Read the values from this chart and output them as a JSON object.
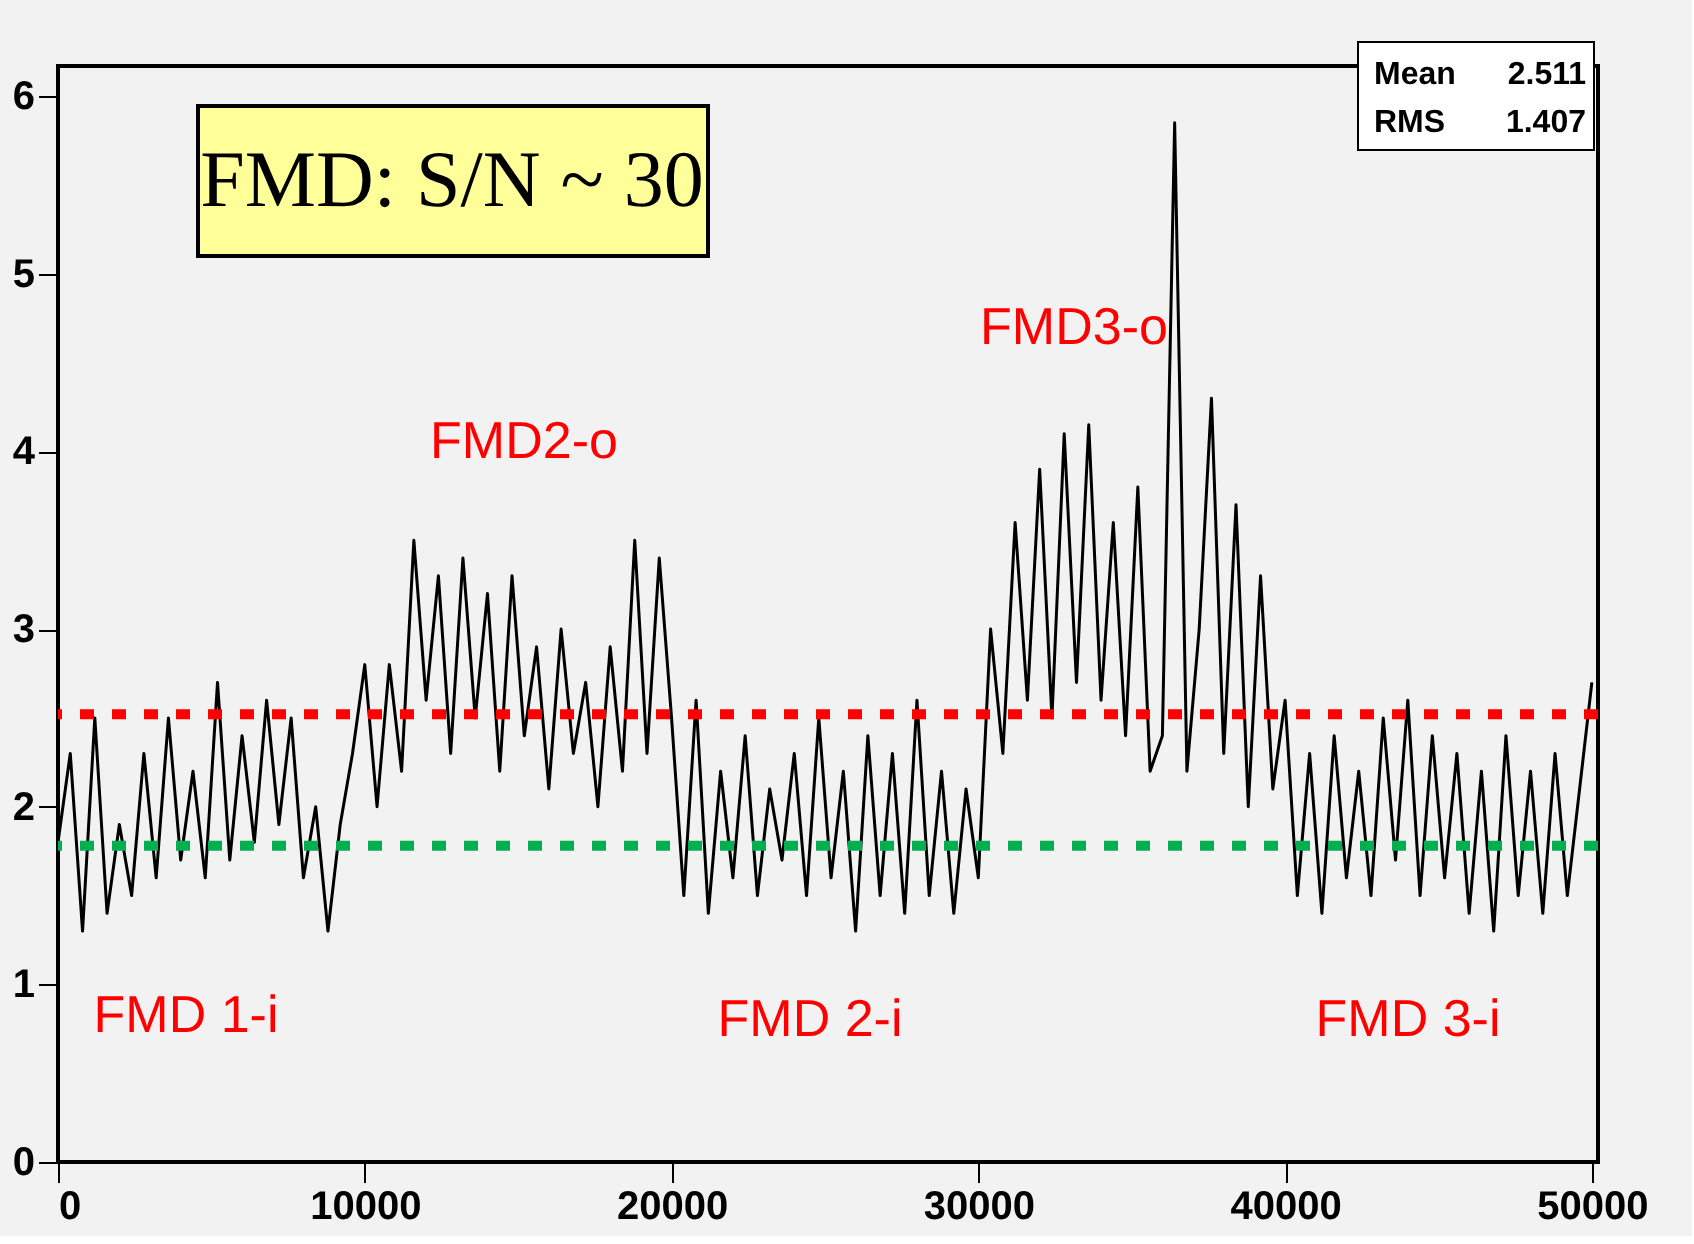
{
  "chart_data": {
    "type": "line",
    "x": [
      0,
      400,
      800,
      1200,
      1600,
      2000,
      2400,
      2800,
      3200,
      3600,
      4000,
      4400,
      4800,
      5200,
      5600,
      6000,
      6400,
      6800,
      7200,
      7600,
      8000,
      8400,
      8800,
      9200,
      9600,
      10000,
      10400,
      10800,
      11200,
      11600,
      12000,
      12400,
      12800,
      13200,
      13600,
      14000,
      14400,
      14800,
      15200,
      15600,
      16000,
      16400,
      16800,
      17200,
      17600,
      18000,
      18400,
      18800,
      19200,
      19600,
      20000,
      20400,
      20800,
      21200,
      21600,
      22000,
      22400,
      22800,
      23200,
      23600,
      24000,
      24400,
      24800,
      25200,
      25600,
      26000,
      26400,
      26800,
      27200,
      27600,
      28000,
      28400,
      28800,
      29200,
      29600,
      30000,
      30400,
      30800,
      31200,
      31600,
      32000,
      32400,
      32800,
      33200,
      33600,
      34000,
      34400,
      34800,
      35200,
      35600,
      36000,
      36400,
      36800,
      37200,
      37600,
      38000,
      38400,
      38800,
      39200,
      39600,
      40000,
      40400,
      40800,
      41200,
      41600,
      42000,
      42400,
      42800,
      43200,
      43600,
      44000,
      44400,
      44800,
      45200,
      45600,
      46000,
      46400,
      46800,
      47200,
      47600,
      48000,
      48400,
      48800,
      49200,
      49600,
      50000
    ],
    "series": [
      {
        "color": "#000000",
        "values": [
          1.8,
          2.3,
          1.3,
          2.5,
          1.4,
          1.9,
          1.5,
          2.3,
          1.6,
          2.5,
          1.7,
          2.2,
          1.6,
          2.7,
          1.7,
          2.4,
          1.8,
          2.6,
          1.9,
          2.5,
          1.6,
          2.0,
          1.3,
          1.9,
          2.3,
          2.8,
          2.0,
          2.8,
          2.2,
          3.5,
          2.6,
          3.3,
          2.3,
          3.4,
          2.5,
          3.2,
          2.2,
          3.3,
          2.4,
          2.9,
          2.1,
          3.0,
          2.3,
          2.7,
          2.0,
          2.9,
          2.2,
          3.5,
          2.3,
          3.4,
          2.5,
          1.5,
          2.6,
          1.4,
          2.2,
          1.6,
          2.4,
          1.5,
          2.1,
          1.7,
          2.3,
          1.5,
          2.5,
          1.6,
          2.2,
          1.3,
          2.4,
          1.5,
          2.3,
          1.4,
          2.6,
          1.5,
          2.2,
          1.4,
          2.1,
          1.6,
          3.0,
          2.3,
          3.6,
          2.6,
          3.9,
          2.5,
          4.1,
          2.7,
          4.15,
          2.6,
          3.6,
          2.4,
          3.8,
          2.2,
          2.4,
          5.85,
          2.2,
          3.0,
          4.3,
          2.3,
          3.7,
          2.0,
          3.3,
          2.1,
          2.6,
          1.5,
          2.3,
          1.4,
          2.4,
          1.6,
          2.2,
          1.5,
          2.5,
          1.7,
          2.6,
          1.5,
          2.4,
          1.6,
          2.3,
          1.4,
          2.2,
          1.3,
          2.4,
          1.5,
          2.2,
          1.4,
          2.3,
          1.5,
          2.1,
          2.7
        ]
      }
    ],
    "xlim": [
      0,
      50200
    ],
    "ylim": [
      0,
      6.17
    ],
    "xticks": [
      0,
      10000,
      20000,
      30000,
      40000,
      50000
    ],
    "yticks": [
      0,
      1,
      2,
      3,
      4,
      5,
      6
    ],
    "grid": false,
    "marker": "none",
    "line_style": "solid",
    "ref_lines": [
      {
        "axis": "y",
        "value": 2.52,
        "color": "#ff0000",
        "line_style": "dotted"
      },
      {
        "axis": "y",
        "value": 1.78,
        "color": "#00b050",
        "line_style": "dotted"
      }
    ],
    "annotations": [
      "FMD: S/N ~ 30",
      "Mean 2.511",
      "RMS 1.407",
      "FMD2-o",
      "FMD3-o",
      "FMD 1-i",
      "FMD 2-i",
      "FMD 3-i"
    ]
  }
}
